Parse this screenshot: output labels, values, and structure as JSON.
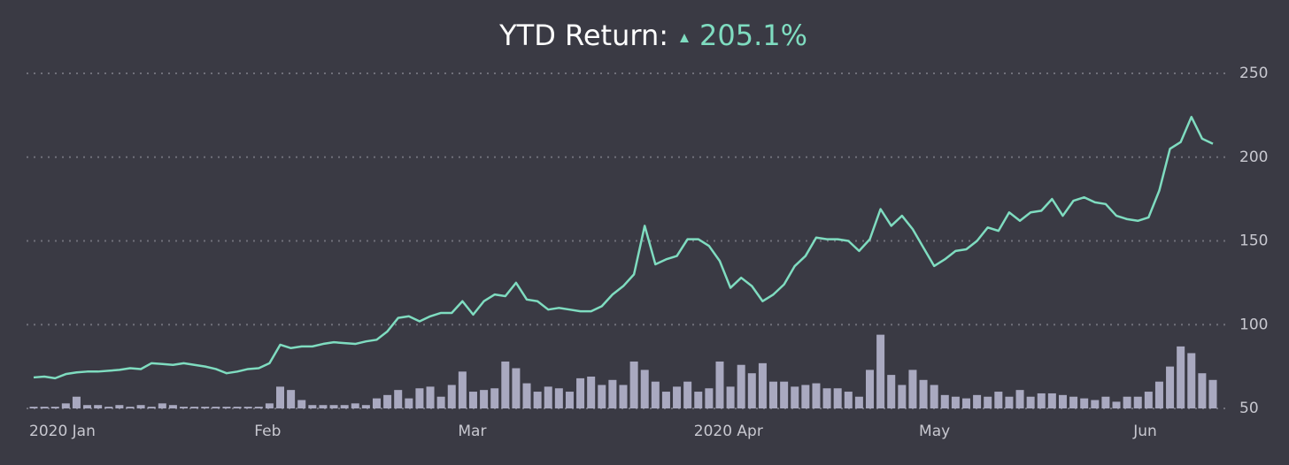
{
  "chart_data": {
    "type": "line-volume",
    "title": "YTD Return:",
    "return_value": "205.1%",
    "categories": [
      "2020 Jan",
      null,
      null,
      null,
      null,
      null,
      null,
      null,
      null,
      null,
      null,
      null,
      null,
      null,
      null,
      null,
      null,
      null,
      null,
      null,
      null,
      "Feb",
      null,
      null,
      null,
      null,
      null,
      null,
      null,
      null,
      null,
      null,
      null,
      null,
      null,
      null,
      null,
      null,
      null,
      null,
      "Mar",
      null,
      null,
      null,
      null,
      null,
      null,
      null,
      null,
      null,
      null,
      null,
      null,
      null,
      null,
      null,
      null,
      null,
      null,
      null,
      null,
      null,
      "2020 Apr",
      null,
      null,
      null,
      null,
      null,
      null,
      null,
      null,
      null,
      null,
      null,
      null,
      null,
      null,
      null,
      null,
      null,
      null,
      null,
      null,
      "May",
      null,
      null,
      null,
      null,
      null,
      null,
      null,
      null,
      null,
      null,
      null,
      null,
      null,
      null,
      null,
      null,
      null,
      null,
      null,
      "Jun",
      null,
      null,
      null,
      null,
      null,
      null,
      null
    ],
    "series": [
      {
        "type": "line",
        "color": "#7fdcc0",
        "values": [
          68.5,
          69,
          68,
          70.5,
          71.5,
          72,
          72,
          72.5,
          73,
          74,
          73.5,
          77,
          76.5,
          76,
          77,
          76,
          75,
          73.5,
          71,
          72,
          73.5,
          74,
          77,
          88,
          86,
          87,
          87,
          88.5,
          89.5,
          89,
          88.5,
          90,
          91,
          96,
          104,
          105,
          102,
          105,
          107,
          107,
          114,
          106,
          114,
          118,
          117,
          125,
          115,
          114,
          109,
          110,
          109,
          108,
          108,
          111,
          118,
          123,
          130,
          159,
          136,
          139,
          141,
          151,
          151,
          147,
          138,
          122,
          128,
          123,
          114,
          118,
          124,
          135,
          141,
          152,
          151,
          151,
          150,
          144,
          151,
          169,
          159,
          165,
          157,
          146,
          135,
          139,
          144,
          145,
          150,
          158,
          156,
          167,
          162,
          167,
          168,
          175,
          165,
          174,
          176,
          173,
          172,
          165,
          163,
          162,
          164,
          180,
          205,
          209,
          224,
          211,
          208
        ]
      },
      {
        "type": "bar",
        "color": "#a9a9c0",
        "values": [
          51,
          51,
          51,
          53,
          57,
          52,
          52,
          51,
          52,
          51,
          52,
          51,
          53,
          52,
          51,
          51,
          51,
          51,
          51,
          51,
          51,
          51,
          53,
          63,
          61,
          55,
          52,
          52,
          52,
          52,
          53,
          52,
          56,
          58,
          61,
          56,
          62,
          63,
          57,
          64,
          72,
          60,
          61,
          62,
          78,
          74,
          65,
          60,
          63,
          62,
          60,
          68,
          69,
          64,
          67,
          64,
          78,
          73,
          66,
          60,
          63,
          66,
          60,
          62,
          78,
          63,
          76,
          71,
          77,
          66,
          66,
          63,
          64,
          65,
          62,
          62,
          60,
          57,
          73,
          94,
          70,
          64,
          73,
          67,
          64,
          58,
          57,
          56,
          58,
          57,
          60,
          57,
          61,
          57,
          59,
          59,
          58,
          57,
          56,
          55,
          57,
          54,
          57,
          57,
          60,
          66,
          75,
          87,
          83,
          71,
          67
        ]
      }
    ],
    "ylim": [
      50,
      250
    ],
    "yticks": [
      50,
      100,
      150,
      200,
      250
    ],
    "grid": true
  }
}
